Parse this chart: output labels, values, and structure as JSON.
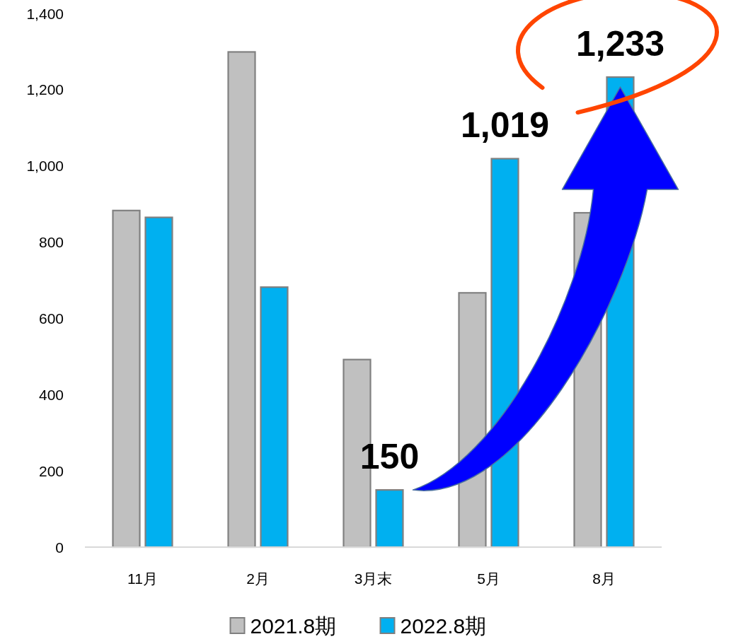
{
  "chart_data": {
    "type": "bar",
    "categories": [
      "11月",
      "2月",
      "3月末",
      "5月",
      "8月"
    ],
    "series": [
      {
        "name": "2021.8期",
        "color": "#c0c0c0",
        "values": [
          883,
          1299,
          492,
          667,
          877
        ]
      },
      {
        "name": "2022.8期",
        "color": "#00b0f0",
        "values": [
          865,
          682,
          150,
          1019,
          1233
        ],
        "value_labels": [
          null,
          null,
          "150",
          "1,019",
          "1,233"
        ]
      }
    ],
    "ylim": [
      0,
      1400
    ],
    "yticks": [
      0,
      200,
      400,
      600,
      800,
      {
        "value": 1000,
        "label": "1,000"
      },
      {
        "value": 1200,
        "label": "1,200"
      },
      {
        "value": 1400,
        "label": "1,400"
      }
    ],
    "grid": false,
    "legend": "bottom"
  }
}
